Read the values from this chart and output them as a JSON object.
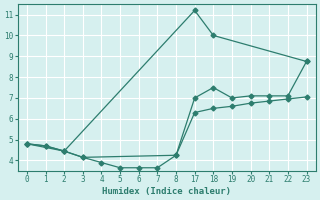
{
  "xlabel": "Humidex (Indice chaleur)",
  "bg_color": "#d6f0ef",
  "line_color": "#2d7d6e",
  "grid_color": "#ffffff",
  "grid_red_color": "#e8a0a0",
  "ylim": [
    3.5,
    11.5
  ],
  "yticks": [
    4,
    5,
    6,
    7,
    8,
    9,
    10,
    11
  ],
  "xtick_labels": [
    "0",
    "1",
    "2",
    "3",
    "4",
    "5",
    "6",
    "7",
    "8",
    "17",
    "18",
    "19",
    "20",
    "21",
    "22",
    "23"
  ],
  "line1_xi": [
    0,
    1,
    2,
    9,
    10,
    15
  ],
  "line1_y": [
    4.8,
    4.7,
    4.45,
    11.2,
    10.0,
    8.75
  ],
  "line2_xi": [
    0,
    1,
    2,
    3,
    8,
    9,
    10,
    11,
    12,
    13,
    14,
    15
  ],
  "line2_y": [
    4.8,
    4.7,
    4.45,
    4.15,
    4.25,
    7.0,
    7.5,
    7.0,
    7.1,
    7.1,
    7.1,
    8.75
  ],
  "line3_xi": [
    0,
    2,
    3,
    4,
    5,
    6,
    7,
    8,
    9,
    10,
    11,
    12,
    13,
    14,
    15
  ],
  "line3_y": [
    4.8,
    4.45,
    4.15,
    3.9,
    3.65,
    3.65,
    3.65,
    4.25,
    6.3,
    6.5,
    6.6,
    6.75,
    6.85,
    6.95,
    7.05
  ],
  "marker_size": 2.5,
  "line_width": 0.9
}
